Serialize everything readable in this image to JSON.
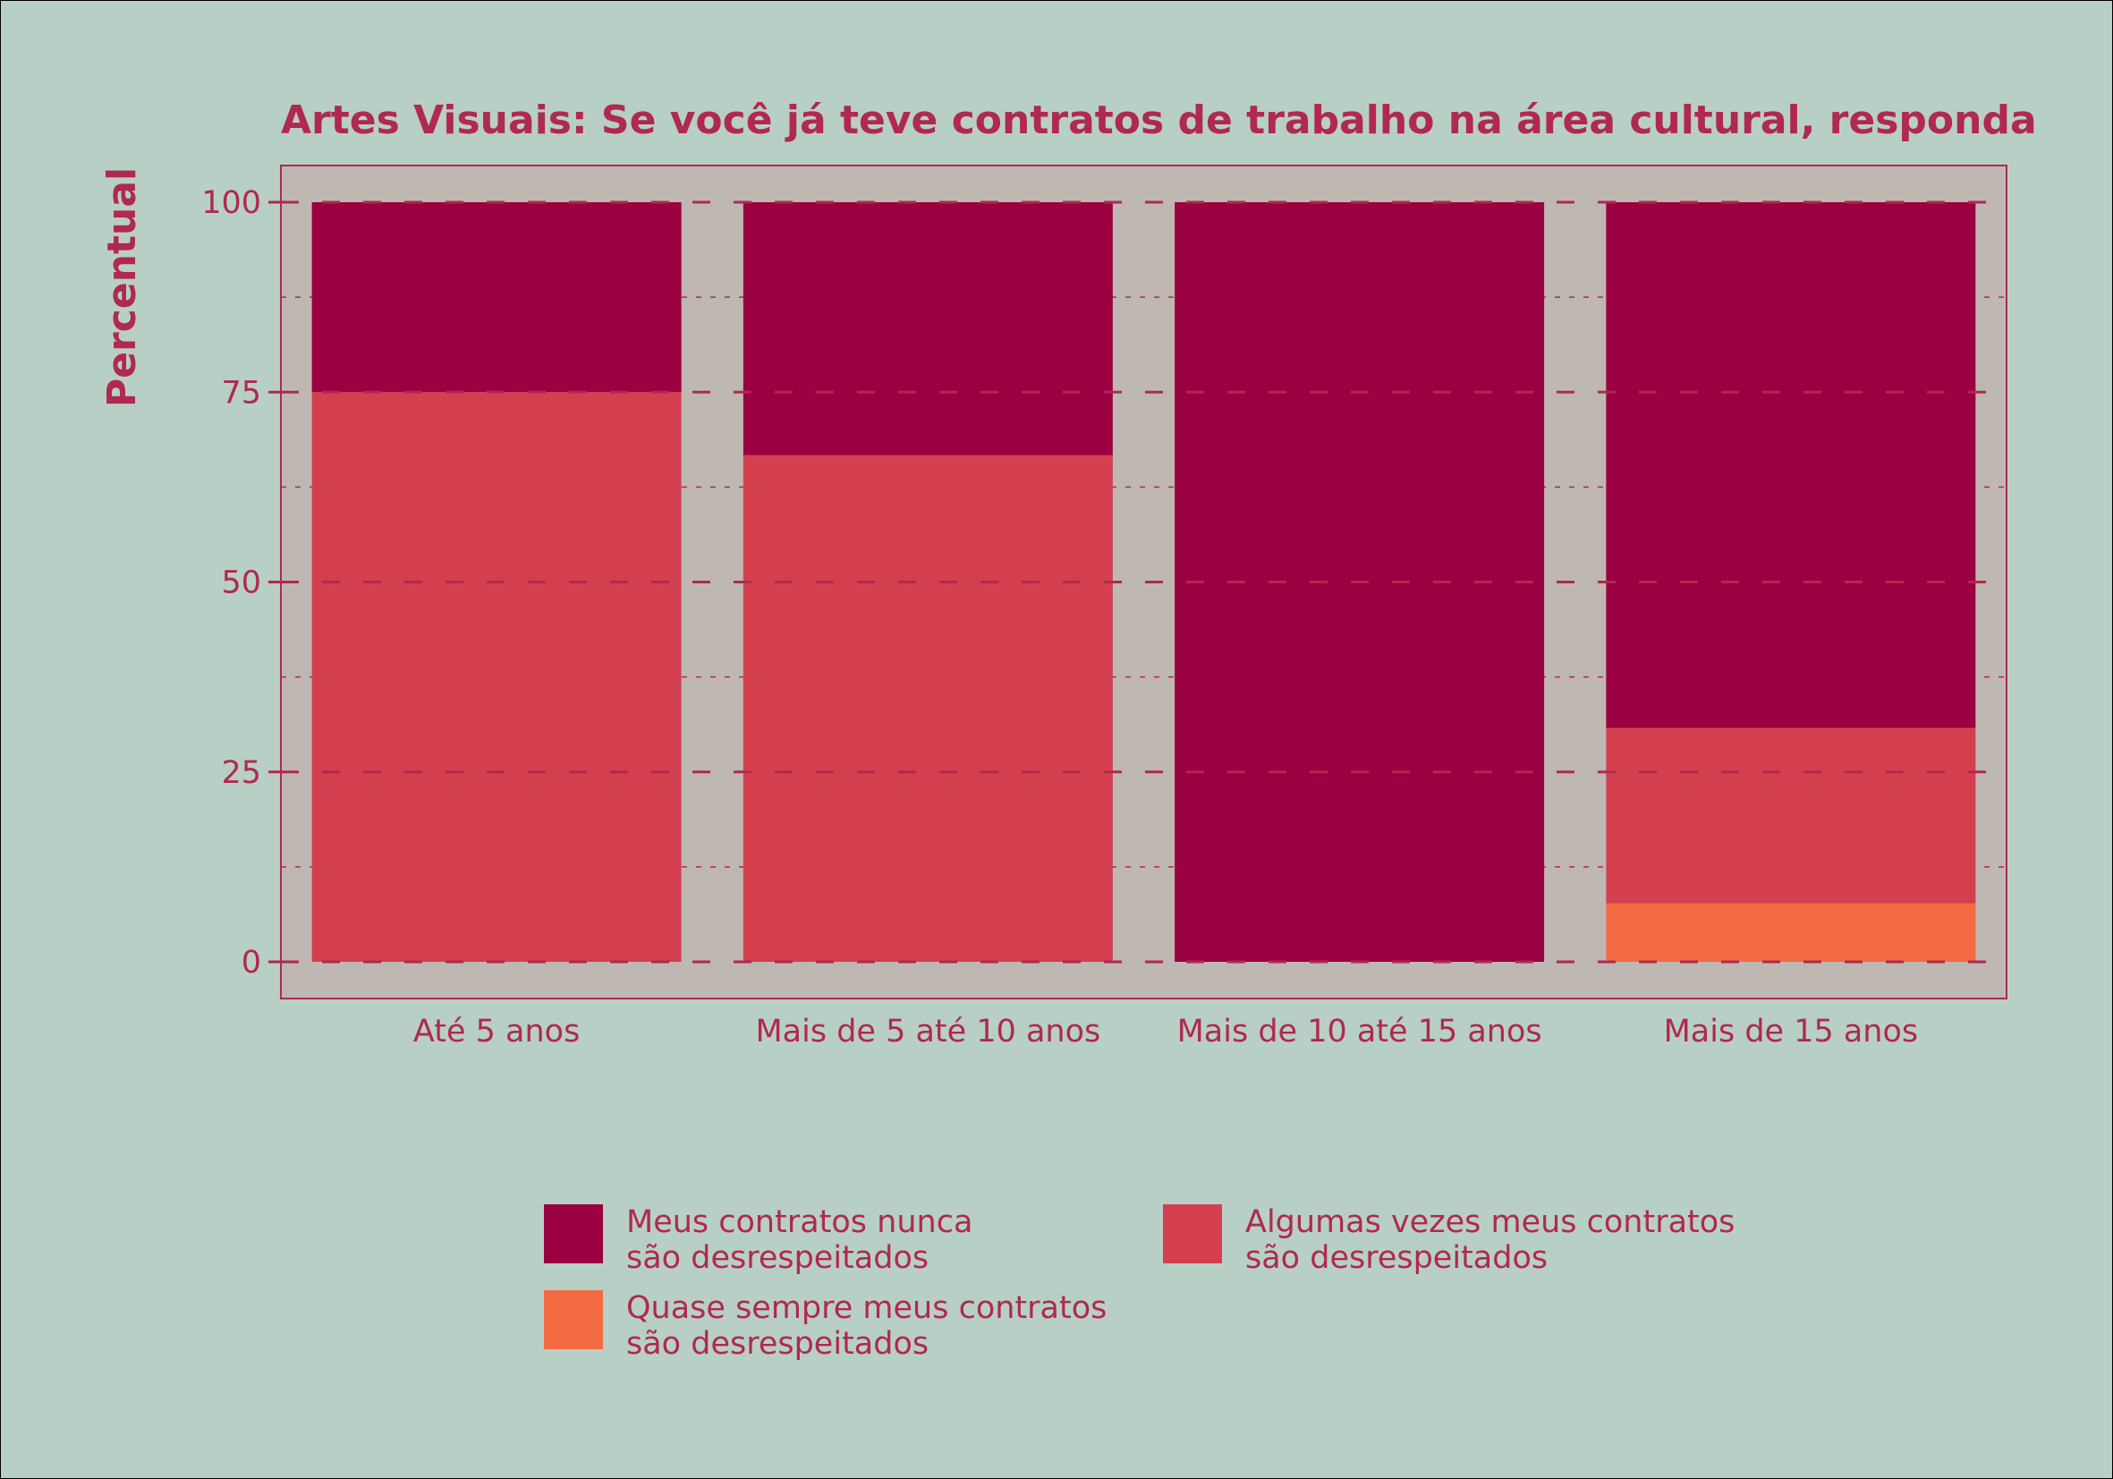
{
  "chart_data": {
    "type": "bar",
    "stacked": true,
    "title": "Artes Visuais: Se você já teve contratos de trabalho na área cultural, responda",
    "ylabel": "Percentual",
    "xlabel": "",
    "ylim": [
      0,
      100
    ],
    "yticks": [
      "0",
      "25",
      "50",
      "75",
      "100"
    ],
    "grid": true,
    "categories": [
      "Até 5 anos",
      "Mais de 5 até 10 anos",
      "Mais de 10 até 15 anos",
      "Mais de 15 anos"
    ],
    "series": [
      {
        "name": "Quase sempre meus contratos são desrespeitados",
        "color": "#f26b43",
        "values": [
          0,
          0,
          0,
          7.7
        ]
      },
      {
        "name": "Algumas vezes meus contratos são desrespeitados",
        "color": "#d43f4f",
        "values": [
          75,
          66.7,
          0,
          23.1
        ]
      },
      {
        "name": "Meus contratos nunca são desrespeitados",
        "color": "#9b0040",
        "values": [
          25,
          33.3,
          100,
          69.2
        ]
      }
    ],
    "legend_position": "bottom"
  },
  "legend": {
    "items": [
      {
        "line1": "Meus contratos nunca",
        "line2": "são desrespeitados",
        "color": "#9b0040"
      },
      {
        "line1": "Algumas vezes meus contratos",
        "line2": "são desrespeitados",
        "color": "#d43f4f"
      },
      {
        "line1": "Quase sempre meus contratos",
        "line2": "são desrespeitados",
        "color": "#f26b43"
      }
    ]
  },
  "colors": {
    "background": "#b8cfc5",
    "panel": "#bfb8b2",
    "text": "#b0294f"
  }
}
